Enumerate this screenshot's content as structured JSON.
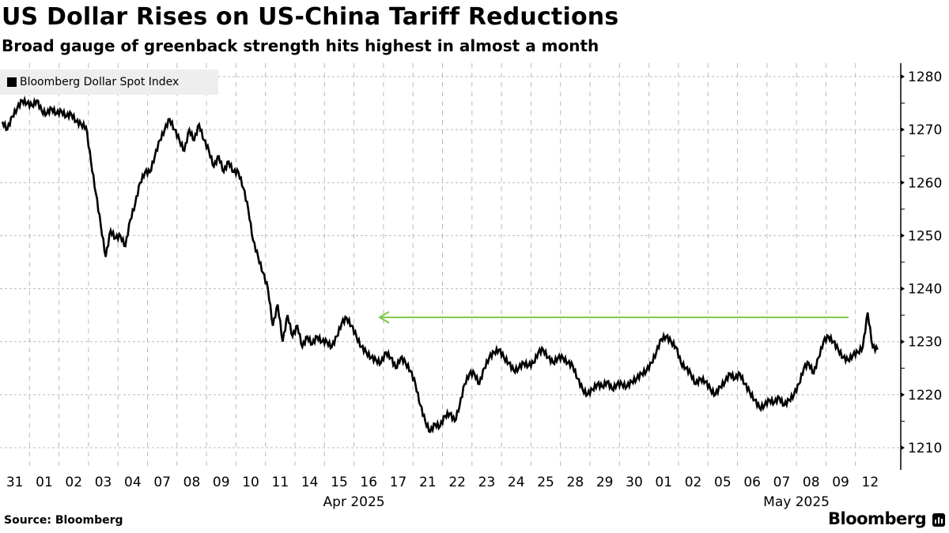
{
  "header": {
    "title": "US Dollar Rises on US-China Tariff Reductions",
    "subtitle": "Broad gauge of greenback strength hits highest in almost a month"
  },
  "legend": {
    "label": "Bloomberg Dollar Spot Index",
    "color": "#000000"
  },
  "footer": {
    "source": "Source: Bloomberg",
    "brand": "Bloomberg"
  },
  "annotation": {
    "type": "arrow",
    "color": "#7ac943",
    "value": 1234.6,
    "from_day": "12",
    "to_day": "16"
  },
  "chart_data": {
    "type": "line",
    "title": "US Dollar Rises on US-China Tariff Reductions",
    "subtitle": "Broad gauge of greenback strength hits highest in almost a month",
    "xlabel": "",
    "ylabel": "",
    "ylim": [
      1206,
      1282
    ],
    "yticks": [
      1210,
      1220,
      1230,
      1240,
      1250,
      1260,
      1270,
      1280
    ],
    "y_axis_side": "right",
    "grid": true,
    "legend_position": "top-left",
    "x_categories": [
      "31",
      "01",
      "02",
      "03",
      "04",
      "07",
      "08",
      "09",
      "10",
      "11",
      "14",
      "15",
      "16",
      "17",
      "21",
      "22",
      "23",
      "24",
      "25",
      "28",
      "29",
      "30",
      "01",
      "02",
      "05",
      "06",
      "07",
      "08",
      "09",
      "12"
    ],
    "month_labels": [
      {
        "label": "Apr 2025",
        "at_day_index": 11.5
      },
      {
        "label": "May 2025",
        "at_day_index": 26.5
      }
    ],
    "series": [
      {
        "name": "Bloomberg Dollar Spot Index",
        "color": "#000000",
        "values_per_day": [
          [
            1271.5,
            1270,
            1272.5,
            1274,
            1275.5,
            1275
          ],
          [
            1274.5,
            1275.5,
            1273.5,
            1273,
            1274,
            1273
          ],
          [
            1273.5,
            1272.5,
            1273,
            1271.5,
            1271,
            1270.5
          ],
          [
            1264,
            1258,
            1252,
            1246,
            1251,
            1249.5
          ],
          [
            1250,
            1248,
            1253,
            1256,
            1260,
            1262
          ],
          [
            1262,
            1265,
            1268,
            1270,
            1272,
            1270
          ],
          [
            1268,
            1266,
            1270,
            1268,
            1271,
            1268
          ],
          [
            1266,
            1263,
            1265,
            1262,
            1264,
            1262
          ],
          [
            1262,
            1259,
            1255,
            1249,
            1246,
            1243
          ],
          [
            1240,
            1233,
            1237,
            1230,
            1235,
            1231
          ],
          [
            1233,
            1229,
            1231,
            1229.5,
            1231,
            1230
          ],
          [
            1230,
            1229,
            1231,
            1233.5,
            1234.5,
            1233
          ],
          [
            1231,
            1229,
            1228,
            1227,
            1226.5,
            1226
          ],
          [
            1228,
            1227,
            1225,
            1227,
            1226,
            1224.5
          ],
          [
            1222,
            1218,
            1215,
            1213,
            1214.5,
            1214
          ],
          [
            1216,
            1216.5,
            1215,
            1218,
            1222,
            1224
          ],
          [
            1224,
            1222,
            1225,
            1227,
            1228,
            1228.5
          ],
          [
            1227,
            1226,
            1224.5,
            1225,
            1226,
            1225.5
          ],
          [
            1226,
            1228,
            1228.5,
            1227,
            1226,
            1227
          ],
          [
            1227,
            1226,
            1225.5,
            1223,
            1221,
            1220
          ],
          [
            1221,
            1222,
            1221.5,
            1222.5,
            1221,
            1222
          ],
          [
            1222,
            1221.5,
            1222.5,
            1223,
            1224,
            1224.5
          ],
          [
            1226,
            1228,
            1230.5,
            1231,
            1230,
            1229
          ],
          [
            1226,
            1225,
            1224,
            1222,
            1223,
            1222.5
          ],
          [
            1221,
            1220,
            1221.5,
            1222.5,
            1224,
            1223
          ],
          [
            1224,
            1222,
            1220.5,
            1219,
            1217.5,
            1218
          ],
          [
            1219,
            1218.5,
            1219.5,
            1218,
            1219,
            1220
          ],
          [
            1222,
            1225,
            1226,
            1224,
            1227,
            1230
          ],
          [
            1231,
            1230,
            1228.5,
            1227,
            1226.5,
            1227.5
          ],
          [
            1228,
            1229,
            1235.5,
            1229,
            1228.5
          ]
        ]
      }
    ]
  }
}
